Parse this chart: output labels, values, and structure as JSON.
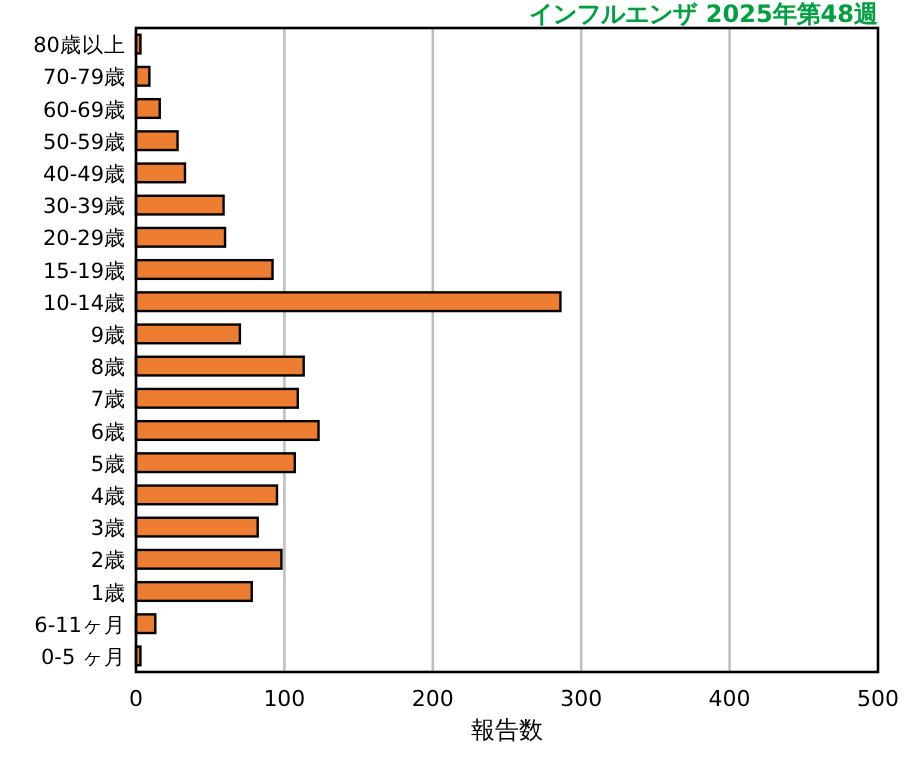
{
  "chart_data": {
    "type": "bar",
    "orientation": "horizontal",
    "title": "インフルエンザ 2025年第48週",
    "xlabel": "報告数",
    "categories": [
      "80歳以上",
      "70-79歳",
      "60-69歳",
      "50-59歳",
      "40-49歳",
      "30-39歳",
      "20-29歳",
      "15-19歳",
      "10-14歳",
      "9歳",
      "8歳",
      "7歳",
      "6歳",
      "5歳",
      "4歳",
      "3歳",
      "2歳",
      "1歳",
      "6-11ヶ月",
      "0-5 ヶ月"
    ],
    "values": [
      3,
      9,
      16,
      28,
      33,
      59,
      60,
      92,
      286,
      70,
      113,
      109,
      123,
      107,
      95,
      82,
      98,
      78,
      13,
      3
    ],
    "color": "#ed7d31",
    "xlim": [
      0,
      500
    ],
    "xticks": [
      0,
      100,
      200,
      300,
      400,
      500
    ],
    "grid": "x"
  }
}
